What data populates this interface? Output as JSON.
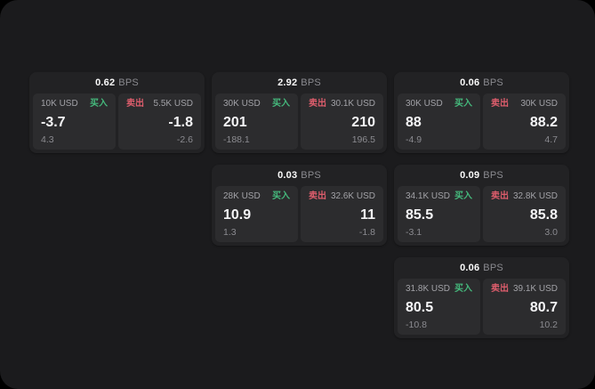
{
  "labels": {
    "bps_suffix": "BPS",
    "buy": "买入",
    "sell": "卖出"
  },
  "colors": {
    "buy": "#45b97c",
    "sell": "#dd5d6c",
    "container_bg": "#1b1b1d",
    "card_bg": "#222224",
    "panel_bg": "#2c2c2e"
  },
  "cards": [
    {
      "row": 1,
      "col": 1,
      "bps": "0.62",
      "buy": {
        "size": "10K USD",
        "price": "-3.7",
        "delta": "4.3"
      },
      "sell": {
        "size": "5.5K USD",
        "price": "-1.8",
        "delta": "-2.6"
      }
    },
    {
      "row": 1,
      "col": 2,
      "bps": "2.92",
      "buy": {
        "size": "30K USD",
        "price": "201",
        "delta": "-188.1"
      },
      "sell": {
        "size": "30.1K USD",
        "price": "210",
        "delta": "196.5"
      }
    },
    {
      "row": 1,
      "col": 3,
      "bps": "0.06",
      "buy": {
        "size": "30K USD",
        "price": "88",
        "delta": "-4.9"
      },
      "sell": {
        "size": "30K USD",
        "price": "88.2",
        "delta": "4.7"
      }
    },
    {
      "row": 2,
      "col": 2,
      "bps": "0.03",
      "buy": {
        "size": "28K USD",
        "price": "10.9",
        "delta": "1.3"
      },
      "sell": {
        "size": "32.6K USD",
        "price": "11",
        "delta": "-1.8"
      }
    },
    {
      "row": 2,
      "col": 3,
      "bps": "0.09",
      "buy": {
        "size": "34.1K USD",
        "price": "85.5",
        "delta": "-3.1"
      },
      "sell": {
        "size": "32.8K USD",
        "price": "85.8",
        "delta": "3.0"
      }
    },
    {
      "row": 3,
      "col": 3,
      "bps": "0.06",
      "buy": {
        "size": "31.8K USD",
        "price": "80.5",
        "delta": "-10.8"
      },
      "sell": {
        "size": "39.1K USD",
        "price": "80.7",
        "delta": "10.2"
      }
    }
  ]
}
